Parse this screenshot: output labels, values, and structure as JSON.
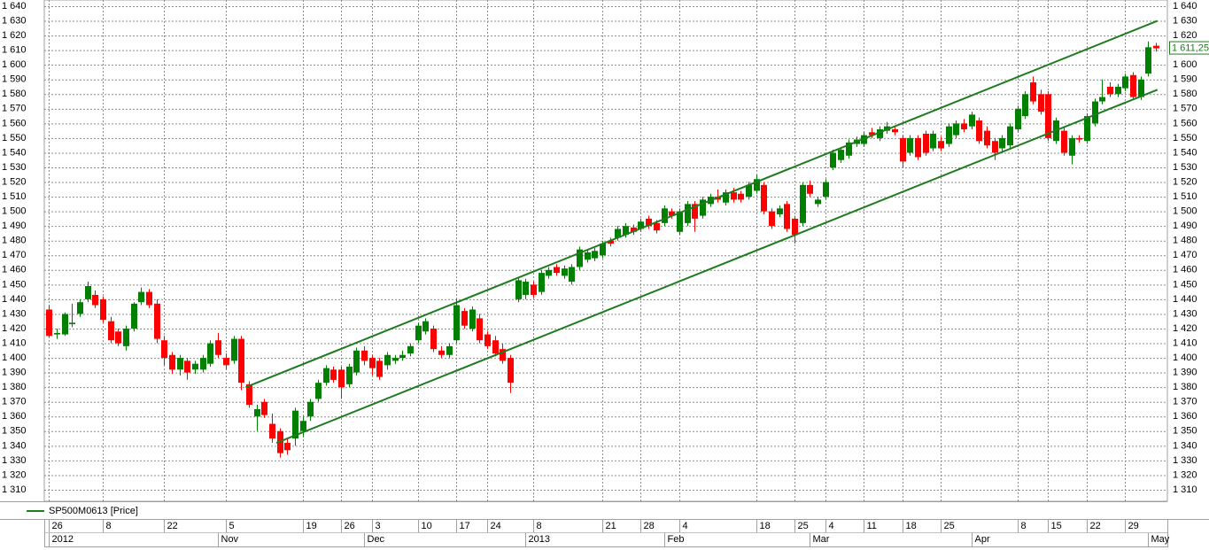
{
  "chart_data": {
    "type": "candlestick",
    "ylim": [
      1300,
      1640
    ],
    "yticks": [
      {
        "value": 1640,
        "label": "1 640"
      },
      {
        "value": 1630,
        "label": "1 630"
      },
      {
        "value": 1620,
        "label": "1 620"
      },
      {
        "value": 1610,
        "label": "1 610"
      },
      {
        "value": 1600,
        "label": "1 600"
      },
      {
        "value": 1590,
        "label": "1 590"
      },
      {
        "value": 1580,
        "label": "1 580"
      },
      {
        "value": 1570,
        "label": "1 570"
      },
      {
        "value": 1560,
        "label": "1 560"
      },
      {
        "value": 1550,
        "label": "1 550"
      },
      {
        "value": 1540,
        "label": "1 540"
      },
      {
        "value": 1530,
        "label": "1 530"
      },
      {
        "value": 1520,
        "label": "1 520"
      },
      {
        "value": 1510,
        "label": "1 510"
      },
      {
        "value": 1500,
        "label": "1 500"
      },
      {
        "value": 1490,
        "label": "1 490"
      },
      {
        "value": 1480,
        "label": "1 480"
      },
      {
        "value": 1470,
        "label": "1 470"
      },
      {
        "value": 1460,
        "label": "1 460"
      },
      {
        "value": 1450,
        "label": "1 450"
      },
      {
        "value": 1440,
        "label": "1 440"
      },
      {
        "value": 1430,
        "label": "1 430"
      },
      {
        "value": 1420,
        "label": "1 420"
      },
      {
        "value": 1410,
        "label": "1 410"
      },
      {
        "value": 1400,
        "label": "1 400"
      },
      {
        "value": 1390,
        "label": "1 390"
      },
      {
        "value": 1380,
        "label": "1 380"
      },
      {
        "value": 1370,
        "label": "1 370"
      },
      {
        "value": 1360,
        "label": "1 360"
      },
      {
        "value": 1350,
        "label": "1 350"
      },
      {
        "value": 1340,
        "label": "1 340"
      },
      {
        "value": 1330,
        "label": "1 330"
      },
      {
        "value": 1320,
        "label": "1 320"
      },
      {
        "value": 1310,
        "label": "1 310"
      }
    ],
    "xlim": [
      -0.6,
      145.5
    ],
    "xticks": [
      {
        "value": 0,
        "label": "26"
      },
      {
        "value": 7,
        "label": "8"
      },
      {
        "value": 15,
        "label": "22"
      },
      {
        "value": 23,
        "label": "5"
      },
      {
        "value": 33,
        "label": "19"
      },
      {
        "value": 38,
        "label": "26"
      },
      {
        "value": 42,
        "label": "3"
      },
      {
        "value": 48,
        "label": "10"
      },
      {
        "value": 53,
        "label": "17"
      },
      {
        "value": 57,
        "label": "24"
      },
      {
        "value": 63,
        "label": "8"
      },
      {
        "value": 72,
        "label": "21"
      },
      {
        "value": 77,
        "label": "28"
      },
      {
        "value": 82,
        "label": "4"
      },
      {
        "value": 92,
        "label": "18"
      },
      {
        "value": 97,
        "label": "25"
      },
      {
        "value": 101,
        "label": "4"
      },
      {
        "value": 106,
        "label": "11"
      },
      {
        "value": 111,
        "label": "18"
      },
      {
        "value": 116,
        "label": "25"
      },
      {
        "value": 126,
        "label": "8"
      },
      {
        "value": 130,
        "label": "15"
      },
      {
        "value": 135,
        "label": "22"
      },
      {
        "value": 140,
        "label": "29"
      }
    ],
    "xticks2": [
      {
        "value": 0,
        "label": "2012"
      },
      {
        "value": 22,
        "label": "Nov"
      },
      {
        "value": 41,
        "label": "Dec"
      },
      {
        "value": 62,
        "label": "2013"
      },
      {
        "value": 80,
        "label": "Feb"
      },
      {
        "value": 99,
        "label": "Mar"
      },
      {
        "value": 120,
        "label": "Apr"
      },
      {
        "value": 143,
        "label": "May"
      }
    ],
    "grid": true,
    "up_color": "#008000",
    "down_color": "#ff0000",
    "series": [
      {
        "name": "SP500M0613 [Price]",
        "color": "#1e7b1e",
        "values": [
          [
            1433,
            1436,
            1414,
            1415
          ],
          [
            1416,
            1420,
            1413,
            1417
          ],
          [
            1416,
            1431,
            1415,
            1430
          ],
          [
            1423,
            1437,
            1421,
            1424
          ],
          [
            1430,
            1440,
            1428,
            1438
          ],
          [
            1440,
            1452,
            1438,
            1449
          ],
          [
            1443,
            1446,
            1434,
            1436
          ],
          [
            1440,
            1442,
            1424,
            1426
          ],
          [
            1425,
            1428,
            1410,
            1412
          ],
          [
            1418,
            1420,
            1408,
            1410
          ],
          [
            1408,
            1422,
            1405,
            1420
          ],
          [
            1420,
            1438,
            1418,
            1437
          ],
          [
            1438,
            1448,
            1436,
            1445
          ],
          [
            1445,
            1447,
            1434,
            1436
          ],
          [
            1437,
            1440,
            1410,
            1413
          ],
          [
            1412,
            1415,
            1395,
            1400
          ],
          [
            1402,
            1404,
            1389,
            1392
          ],
          [
            1392,
            1402,
            1388,
            1400
          ],
          [
            1398,
            1400,
            1385,
            1390
          ],
          [
            1392,
            1398,
            1389,
            1396
          ],
          [
            1392,
            1402,
            1390,
            1400
          ],
          [
            1396,
            1412,
            1394,
            1410
          ],
          [
            1412,
            1417,
            1400,
            1402
          ],
          [
            1400,
            1403,
            1392,
            1395
          ],
          [
            1398,
            1415,
            1396,
            1413
          ],
          [
            1413,
            1415,
            1378,
            1383
          ],
          [
            1382,
            1384,
            1366,
            1368
          ],
          [
            1360,
            1368,
            1350,
            1365
          ],
          [
            1370,
            1372,
            1359,
            1361
          ],
          [
            1355,
            1362,
            1342,
            1345
          ],
          [
            1350,
            1352,
            1332,
            1335
          ],
          [
            1342,
            1345,
            1334,
            1337
          ],
          [
            1345,
            1366,
            1340,
            1364
          ],
          [
            1350,
            1360,
            1346,
            1357
          ],
          [
            1360,
            1372,
            1357,
            1370
          ],
          [
            1372,
            1385,
            1370,
            1383
          ],
          [
            1383,
            1395,
            1381,
            1393
          ],
          [
            1392,
            1394,
            1383,
            1385
          ],
          [
            1392,
            1394,
            1372,
            1380
          ],
          [
            1382,
            1396,
            1380,
            1394
          ],
          [
            1390,
            1407,
            1388,
            1405
          ],
          [
            1405,
            1408,
            1395,
            1398
          ],
          [
            1400,
            1402,
            1388,
            1393
          ],
          [
            1398,
            1400,
            1385,
            1387
          ],
          [
            1395,
            1404,
            1392,
            1402
          ],
          [
            1398,
            1402,
            1396,
            1400
          ],
          [
            1400,
            1405,
            1398,
            1402
          ],
          [
            1403,
            1410,
            1401,
            1408
          ],
          [
            1412,
            1424,
            1410,
            1422
          ],
          [
            1418,
            1427,
            1416,
            1425
          ],
          [
            1420,
            1422,
            1404,
            1406
          ],
          [
            1405,
            1408,
            1400,
            1402
          ],
          [
            1402,
            1410,
            1400,
            1408
          ],
          [
            1412,
            1440,
            1410,
            1436
          ],
          [
            1432,
            1434,
            1420,
            1422
          ],
          [
            1420,
            1435,
            1418,
            1433
          ],
          [
            1427,
            1430,
            1410,
            1412
          ],
          [
            1416,
            1418,
            1406,
            1408
          ],
          [
            1412,
            1415,
            1401,
            1403
          ],
          [
            1406,
            1410,
            1396,
            1398
          ],
          [
            1400,
            1402,
            1376,
            1383
          ],
          [
            1440,
            1455,
            1438,
            1453
          ],
          [
            1443,
            1454,
            1440,
            1452
          ],
          [
            1450,
            1452,
            1441,
            1443
          ],
          [
            1445,
            1460,
            1443,
            1458
          ],
          [
            1456,
            1462,
            1454,
            1460
          ],
          [
            1462,
            1464,
            1456,
            1458
          ],
          [
            1456,
            1463,
            1454,
            1461
          ],
          [
            1452,
            1464,
            1450,
            1462
          ],
          [
            1462,
            1476,
            1460,
            1474
          ],
          [
            1467,
            1474,
            1465,
            1472
          ],
          [
            1468,
            1475,
            1466,
            1473
          ],
          [
            1470,
            1480,
            1468,
            1478
          ],
          [
            1480,
            1482,
            1476,
            1478
          ],
          [
            1482,
            1490,
            1480,
            1488
          ],
          [
            1484,
            1492,
            1482,
            1490
          ],
          [
            1489,
            1491,
            1484,
            1486
          ],
          [
            1488,
            1495,
            1486,
            1493
          ],
          [
            1495,
            1497,
            1488,
            1490
          ],
          [
            1492,
            1494,
            1485,
            1487
          ],
          [
            1492,
            1504,
            1490,
            1502
          ],
          [
            1500,
            1502,
            1495,
            1497
          ],
          [
            1486,
            1502,
            1484,
            1500
          ],
          [
            1492,
            1507,
            1490,
            1505
          ],
          [
            1505,
            1507,
            1486,
            1495
          ],
          [
            1497,
            1510,
            1495,
            1508
          ],
          [
            1505,
            1512,
            1503,
            1510
          ],
          [
            1510,
            1515,
            1506,
            1508
          ],
          [
            1506,
            1515,
            1504,
            1513
          ],
          [
            1513,
            1516,
            1506,
            1508
          ],
          [
            1512,
            1514,
            1506,
            1508
          ],
          [
            1510,
            1520,
            1508,
            1518
          ],
          [
            1514,
            1525,
            1512,
            1522
          ],
          [
            1518,
            1520,
            1498,
            1500
          ],
          [
            1500,
            1502,
            1488,
            1490
          ],
          [
            1498,
            1504,
            1496,
            1502
          ],
          [
            1505,
            1507,
            1486,
            1488
          ],
          [
            1495,
            1497,
            1478,
            1484
          ],
          [
            1492,
            1520,
            1490,
            1518
          ],
          [
            1518,
            1521,
            1510,
            1512
          ],
          [
            1505,
            1510,
            1503,
            1508
          ],
          [
            1510,
            1522,
            1508,
            1520
          ],
          [
            1530,
            1542,
            1528,
            1540
          ],
          [
            1535,
            1544,
            1533,
            1542
          ],
          [
            1538,
            1549,
            1536,
            1547
          ],
          [
            1546,
            1551,
            1544,
            1549
          ],
          [
            1546,
            1554,
            1544,
            1552
          ],
          [
            1554,
            1557,
            1550,
            1552
          ],
          [
            1550,
            1558,
            1548,
            1556
          ],
          [
            1555,
            1561,
            1553,
            1558
          ],
          [
            1556,
            1558,
            1552,
            1554
          ],
          [
            1550,
            1552,
            1530,
            1534
          ],
          [
            1540,
            1552,
            1538,
            1550
          ],
          [
            1550,
            1552,
            1535,
            1537
          ],
          [
            1553,
            1555,
            1538,
            1540
          ],
          [
            1543,
            1555,
            1541,
            1553
          ],
          [
            1548,
            1551,
            1541,
            1543
          ],
          [
            1546,
            1560,
            1544,
            1558
          ],
          [
            1552,
            1562,
            1550,
            1560
          ],
          [
            1560,
            1563,
            1554,
            1556
          ],
          [
            1558,
            1568,
            1556,
            1566
          ],
          [
            1562,
            1564,
            1546,
            1548
          ],
          [
            1555,
            1558,
            1543,
            1545
          ],
          [
            1548,
            1550,
            1535,
            1540
          ],
          [
            1543,
            1552,
            1541,
            1550
          ],
          [
            1545,
            1560,
            1543,
            1558
          ],
          [
            1556,
            1572,
            1554,
            1570
          ],
          [
            1565,
            1582,
            1563,
            1580
          ],
          [
            1588,
            1592,
            1573,
            1575
          ],
          [
            1580,
            1583,
            1566,
            1568
          ],
          [
            1580,
            1582,
            1548,
            1550
          ],
          [
            1548,
            1564,
            1546,
            1562
          ],
          [
            1555,
            1557,
            1538,
            1540
          ],
          [
            1538,
            1552,
            1532,
            1550
          ],
          [
            1550,
            1552,
            1547,
            1549
          ],
          [
            1548,
            1567,
            1546,
            1565
          ],
          [
            1560,
            1577,
            1558,
            1575
          ],
          [
            1575,
            1590,
            1573,
            1578
          ],
          [
            1585,
            1588,
            1578,
            1580
          ],
          [
            1580,
            1587,
            1578,
            1585
          ],
          [
            1584,
            1594,
            1582,
            1592
          ],
          [
            1593,
            1595,
            1576,
            1578
          ],
          [
            1578,
            1592,
            1576,
            1590
          ],
          [
            1594,
            1616,
            1592,
            1612
          ],
          [
            1613,
            1615,
            1609,
            1611.25
          ]
        ]
      }
    ],
    "last_price": {
      "value": 1611.25,
      "label": "1 611,25"
    },
    "trendlines": [
      {
        "color": "#1e7b1e",
        "x": [
          25.6,
          144.2
        ],
        "y": [
          1380,
          1630
        ]
      },
      {
        "color": "#1e7b1e",
        "x": [
          29.6,
          144.2
        ],
        "y": [
          1342,
          1583
        ]
      }
    ]
  }
}
